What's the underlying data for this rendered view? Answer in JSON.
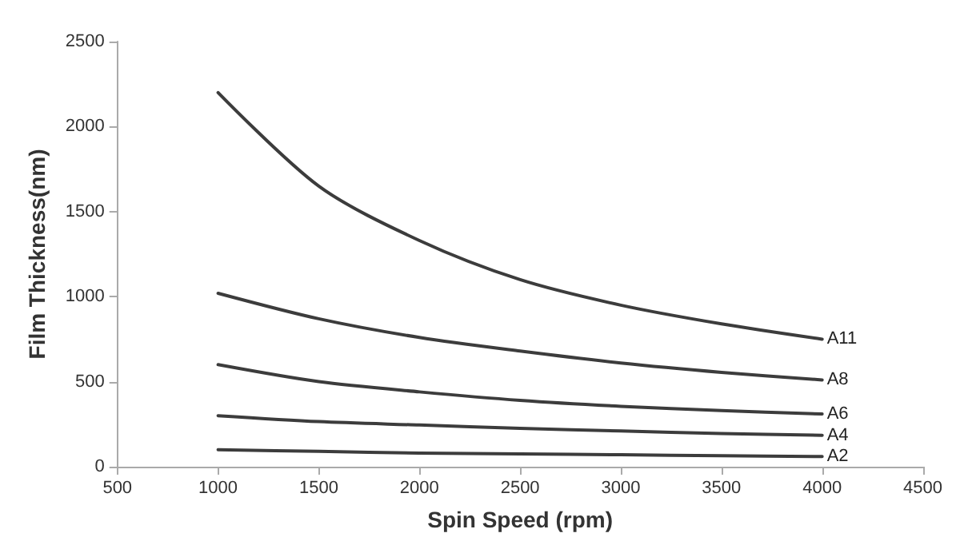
{
  "chart_data": {
    "type": "line",
    "xlabel": "Spin Speed (rpm)",
    "ylabel": "Film Thickness(nm)",
    "xlim": [
      500,
      4500
    ],
    "xticks": [
      500,
      1000,
      1500,
      2000,
      2500,
      3000,
      3500,
      4000,
      4500
    ],
    "ylim": [
      0,
      2500
    ],
    "yticks": [
      0,
      500,
      1000,
      1500,
      2000,
      2500
    ],
    "grid": false,
    "legend": false,
    "marker": "none",
    "line_style": "solid",
    "x": [
      1000,
      1500,
      2000,
      2500,
      3000,
      3500,
      4000
    ],
    "series": [
      {
        "name": "A11",
        "color": "#3c3c3c",
        "values": [
          2200,
          1650,
          1330,
          1100,
          950,
          840,
          750
        ]
      },
      {
        "name": "A8",
        "color": "#3c3c3c",
        "values": [
          1020,
          870,
          760,
          680,
          610,
          555,
          510
        ]
      },
      {
        "name": "A6",
        "color": "#3c3c3c",
        "values": [
          600,
          500,
          440,
          390,
          355,
          330,
          310
        ]
      },
      {
        "name": "A4",
        "color": "#3c3c3c",
        "values": [
          300,
          265,
          245,
          225,
          210,
          195,
          185
        ]
      },
      {
        "name": "A2",
        "color": "#3c3c3c",
        "values": [
          100,
          90,
          80,
          75,
          70,
          65,
          60
        ]
      }
    ]
  }
}
